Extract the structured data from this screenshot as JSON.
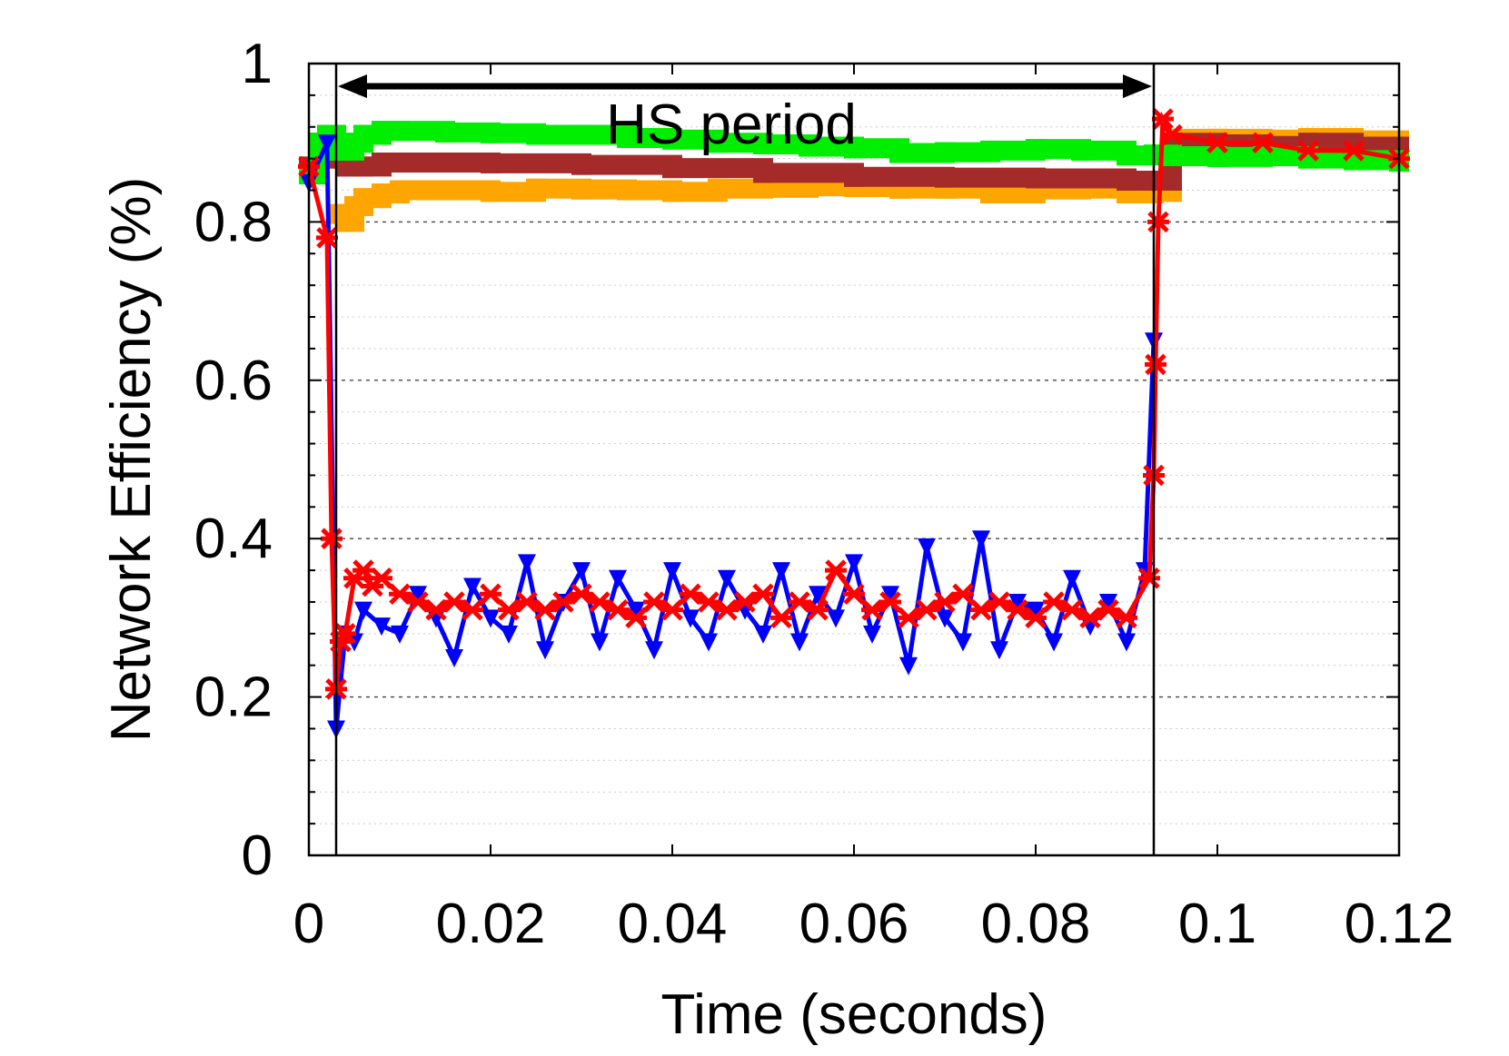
{
  "chart_data": {
    "type": "line",
    "title": "",
    "xlabel": "Time (seconds)",
    "ylabel": "Network Efficiency (%)",
    "xlim": [
      0,
      0.12
    ],
    "ylim": [
      0,
      1
    ],
    "x_ticks": [
      "0",
      "0.02",
      "0.04",
      "0.06",
      "0.08",
      "0.1",
      "0.12"
    ],
    "x_tick_values": [
      0,
      0.02,
      0.04,
      0.06,
      0.08,
      0.1,
      0.12
    ],
    "y_ticks": [
      "0",
      "0.2",
      "0.4",
      "0.6",
      "0.8",
      "1"
    ],
    "y_tick_values": [
      0,
      0.2,
      0.4,
      0.6,
      0.8,
      1
    ],
    "grid": true,
    "legend": "none",
    "annotations": {
      "period_label": "HS period",
      "period_start": 0.003,
      "period_end": 0.093
    },
    "series": [
      {
        "name": "green",
        "color": "#00ee00",
        "marker": "square",
        "x": [
          0,
          0.001,
          0.002,
          0.003,
          0.004,
          0.005,
          0.006,
          0.008,
          0.01,
          0.015,
          0.02,
          0.025,
          0.03,
          0.035,
          0.04,
          0.045,
          0.05,
          0.055,
          0.06,
          0.065,
          0.07,
          0.075,
          0.08,
          0.085,
          0.09,
          0.093,
          0.095,
          0.1,
          0.105,
          0.11,
          0.115,
          0.12
        ],
        "values": [
          0.86,
          0.9,
          0.91,
          0.89,
          0.89,
          0.9,
          0.91,
          0.915,
          0.915,
          0.913,
          0.912,
          0.91,
          0.91,
          0.906,
          0.904,
          0.9,
          0.898,
          0.895,
          0.893,
          0.887,
          0.888,
          0.89,
          0.892,
          0.89,
          0.884,
          0.885,
          0.883,
          0.882,
          0.883,
          0.88,
          0.878,
          0.876
        ]
      },
      {
        "name": "brown",
        "color": "#a52a2a",
        "marker": "square",
        "x": [
          0,
          0.001,
          0.002,
          0.003,
          0.004,
          0.006,
          0.008,
          0.01,
          0.02,
          0.03,
          0.04,
          0.05,
          0.06,
          0.07,
          0.08,
          0.09,
          0.093,
          0.095,
          0.1,
          0.105,
          0.11,
          0.115,
          0.12
        ],
        "values": [
          0.87,
          0.9,
          0.9,
          0.88,
          0.87,
          0.87,
          0.875,
          0.875,
          0.874,
          0.872,
          0.868,
          0.862,
          0.857,
          0.856,
          0.855,
          0.852,
          0.852,
          0.9,
          0.898,
          0.896,
          0.9,
          0.895,
          0.89
        ]
      },
      {
        "name": "orange",
        "color": "#ffa500",
        "marker": "square",
        "x": [
          0.003,
          0.004,
          0.005,
          0.006,
          0.008,
          0.01,
          0.015,
          0.02,
          0.025,
          0.03,
          0.035,
          0.04,
          0.045,
          0.05,
          0.055,
          0.06,
          0.065,
          0.07,
          0.075,
          0.08,
          0.085,
          0.09,
          0.093,
          0.095,
          0.1,
          0.105,
          0.11,
          0.115,
          0.12
        ],
        "values": [
          0.81,
          0.8,
          0.82,
          0.83,
          0.836,
          0.84,
          0.84,
          0.838,
          0.842,
          0.841,
          0.84,
          0.838,
          0.842,
          0.843,
          0.845,
          0.844,
          0.842,
          0.842,
          0.836,
          0.841,
          0.842,
          0.836,
          0.838,
          0.905,
          0.905,
          0.904,
          0.906,
          0.903,
          0.9
        ]
      },
      {
        "name": "blue",
        "color": "#0000ff",
        "marker": "triangle-down",
        "x": [
          0,
          0.002,
          0.003,
          0.004,
          0.005,
          0.006,
          0.008,
          0.01,
          0.012,
          0.014,
          0.016,
          0.018,
          0.02,
          0.022,
          0.024,
          0.026,
          0.028,
          0.03,
          0.032,
          0.034,
          0.036,
          0.038,
          0.04,
          0.042,
          0.044,
          0.046,
          0.048,
          0.05,
          0.052,
          0.054,
          0.056,
          0.058,
          0.06,
          0.062,
          0.064,
          0.066,
          0.068,
          0.07,
          0.072,
          0.074,
          0.076,
          0.078,
          0.08,
          0.082,
          0.084,
          0.086,
          0.088,
          0.09,
          0.092,
          0.093
        ],
        "values": [
          0.85,
          0.9,
          0.16,
          0.28,
          0.27,
          0.31,
          0.29,
          0.28,
          0.33,
          0.3,
          0.25,
          0.34,
          0.3,
          0.28,
          0.37,
          0.26,
          0.32,
          0.36,
          0.27,
          0.35,
          0.31,
          0.26,
          0.36,
          0.3,
          0.27,
          0.35,
          0.31,
          0.28,
          0.36,
          0.27,
          0.33,
          0.3,
          0.37,
          0.28,
          0.33,
          0.24,
          0.39,
          0.3,
          0.27,
          0.4,
          0.26,
          0.32,
          0.31,
          0.27,
          0.35,
          0.29,
          0.32,
          0.27,
          0.36,
          0.65
        ]
      },
      {
        "name": "red",
        "color": "#ff0000",
        "marker": "star",
        "x": [
          0,
          0.002,
          0.0025,
          0.003,
          0.0035,
          0.004,
          0.005,
          0.006,
          0.007,
          0.008,
          0.01,
          0.012,
          0.014,
          0.016,
          0.018,
          0.02,
          0.022,
          0.024,
          0.026,
          0.028,
          0.03,
          0.032,
          0.034,
          0.036,
          0.038,
          0.04,
          0.042,
          0.044,
          0.046,
          0.048,
          0.05,
          0.052,
          0.054,
          0.056,
          0.058,
          0.06,
          0.062,
          0.064,
          0.066,
          0.068,
          0.07,
          0.072,
          0.074,
          0.076,
          0.078,
          0.08,
          0.082,
          0.084,
          0.086,
          0.088,
          0.09,
          0.0925,
          0.093,
          0.0932,
          0.0935,
          0.094,
          0.095,
          0.1,
          0.105,
          0.11,
          0.115,
          0.12
        ],
        "values": [
          0.87,
          0.78,
          0.4,
          0.21,
          0.27,
          0.28,
          0.35,
          0.36,
          0.34,
          0.35,
          0.33,
          0.32,
          0.31,
          0.32,
          0.31,
          0.33,
          0.31,
          0.32,
          0.31,
          0.32,
          0.33,
          0.32,
          0.31,
          0.3,
          0.32,
          0.31,
          0.33,
          0.32,
          0.31,
          0.32,
          0.33,
          0.3,
          0.32,
          0.31,
          0.36,
          0.33,
          0.31,
          0.32,
          0.3,
          0.31,
          0.32,
          0.33,
          0.31,
          0.32,
          0.31,
          0.3,
          0.32,
          0.31,
          0.3,
          0.31,
          0.3,
          0.35,
          0.48,
          0.62,
          0.8,
          0.93,
          0.91,
          0.9,
          0.9,
          0.89,
          0.89,
          0.88
        ]
      }
    ]
  }
}
